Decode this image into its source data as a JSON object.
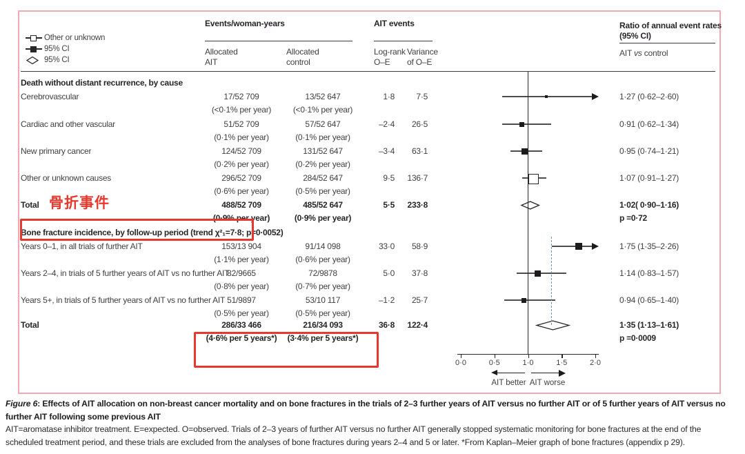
{
  "legend": {
    "items": [
      {
        "marker": "open-square-line",
        "label": "Other or unknown"
      },
      {
        "marker": "filled-square-line",
        "label": "95% CI"
      },
      {
        "marker": "open-diamond",
        "label": "95% CI"
      }
    ]
  },
  "columns": {
    "events_group": "Events/woman-years",
    "allocated_ait": [
      "Allocated",
      "AIT"
    ],
    "allocated_control": [
      "Allocated",
      "control"
    ],
    "ait_events_group": "AIT events",
    "logrank": [
      "Log-rank",
      "O–E"
    ],
    "variance": [
      "Variance",
      "of O–E"
    ],
    "ratio_group": [
      "Ratio of annual event rates",
      "(95% CI)"
    ],
    "ratio_sub": [
      "AIT ",
      "vs",
      " control"
    ]
  },
  "rows": [
    {
      "type": "section",
      "label": "Death without distant recurrence, by cause"
    },
    {
      "type": "data",
      "label": "Cerebrovascular",
      "ait": "17/52 709",
      "ait_note": "(<0·1% per year)",
      "control": "13/52 647",
      "control_note": "(<0·1% per year)",
      "logrank_oe": "1·8",
      "variance": "7·5",
      "ratio": "1·27 (0·62–2·60)",
      "estimate": 1.27,
      "ci_low": 0.62,
      "ci_high": 2.6,
      "ci_high_clipped": true,
      "marker": "filled-square",
      "marker_size": 4
    },
    {
      "type": "data",
      "label": "Cardiac and other vascular",
      "ait": "51/52 709",
      "ait_note": "(0·1% per year)",
      "control": "57/52 647",
      "control_note": "(0·1% per year)",
      "logrank_oe": "–2·4",
      "variance": "26·5",
      "ratio": "0·91 (0·62–1·34)",
      "estimate": 0.91,
      "ci_low": 0.62,
      "ci_high": 1.34,
      "marker": "filled-square",
      "marker_size": 7
    },
    {
      "type": "data",
      "label": "New primary cancer",
      "ait": "124/52 709",
      "ait_note": "(0·2% per year)",
      "control": "131/52 647",
      "control_note": "(0·2% per year)",
      "logrank_oe": "–3·4",
      "variance": "63·1",
      "ratio": "0·95 (0·74–1·21)",
      "estimate": 0.95,
      "ci_low": 0.74,
      "ci_high": 1.21,
      "marker": "filled-square",
      "marker_size": 9
    },
    {
      "type": "data",
      "label": "Other or unknown causes",
      "ait": "296/52 709",
      "ait_note": "(0·6% per year)",
      "control": "284/52 647",
      "control_note": "(0·5% per year)",
      "logrank_oe": "9·5",
      "variance": "136·7",
      "ratio": "1·07 (0·91–1·27)",
      "estimate": 1.07,
      "ci_low": 0.91,
      "ci_high": 1.27,
      "marker": "open-square",
      "marker_size": 13
    },
    {
      "type": "total",
      "label": "Total",
      "ait": "488/52 709",
      "ait_note": "(0·9% per year)",
      "control": "485/52 647",
      "control_note": "(0·9% per year)",
      "logrank_oe": "5·5",
      "variance": "233·8",
      "ratio": "1·02( 0·90–1·16)",
      "p": "p =0·72",
      "estimate": 1.02,
      "ci_low": 0.9,
      "ci_high": 1.16,
      "marker": "diamond"
    },
    {
      "type": "section",
      "label": "Bone fracture incidence, by follow-up period (trend χ²₁=7·8; p=0·0052)"
    },
    {
      "type": "data",
      "label": "Years 0–1, in all trials of further AIT",
      "ait": "153/13 904",
      "ait_note": "(1·1% per year)",
      "control": "91/14 098",
      "control_note": "(0·6% per year)",
      "logrank_oe": "33·0",
      "variance": "58·9",
      "ratio": "1·75 (1·35–2·26)",
      "estimate": 1.75,
      "ci_low": 1.35,
      "ci_high": 2.26,
      "ci_high_clipped": true,
      "marker": "filled-square",
      "marker_size": 10
    },
    {
      "type": "data",
      "label": "Years 2–4, in trials of 5 further years of AIT vs no further AIT",
      "ait": "82/9665",
      "ait_note": "(0·8% per year)",
      "control": "72/9878",
      "control_note": "(0·7% per year)",
      "logrank_oe": "5·0",
      "variance": "37·8",
      "ratio": "1·14 (0·83–1·57)",
      "estimate": 1.14,
      "ci_low": 0.83,
      "ci_high": 1.57,
      "marker": "filled-square",
      "marker_size": 9
    },
    {
      "type": "data",
      "label": "Years 5+, in trials of 5 further years of AIT vs no further AIT",
      "ait": "51/9897",
      "ait_note": "(0·5% per year)",
      "control": "53/10 117",
      "control_note": "(0·5% per year)",
      "logrank_oe": "–1·2",
      "variance": "25·7",
      "ratio": "0·94 (0·65–1·40)",
      "estimate": 0.94,
      "ci_low": 0.65,
      "ci_high": 1.4,
      "marker": "filled-square",
      "marker_size": 7
    },
    {
      "type": "total",
      "label": "Total",
      "ait": "286/33 466",
      "ait_note": "(4·6% per 5 years*)",
      "control": "216/34 093",
      "control_note": "(3·4% per 5 years*)",
      "logrank_oe": "36·8",
      "variance": "122·4",
      "ratio": "1·35 (1·13–1·61)",
      "p": "p =0·0009",
      "estimate": 1.35,
      "ci_low": 1.13,
      "ci_high": 1.61,
      "marker": "diamond"
    }
  ],
  "axis": {
    "tick_labels": [
      "0·0",
      "0·5",
      "1·0",
      "1·5",
      "2·0"
    ],
    "tick_values": [
      0,
      0.5,
      1,
      1.5,
      2
    ],
    "left_label": "AIT better",
    "right_label": "AIT worse",
    "reference": 1.0,
    "dashed_reference": 1.35
  },
  "annotations": {
    "total_note": "骨折事件"
  },
  "caption": {
    "fig_label": "Figure 6",
    "line1_rest": ": Effects of AIT allocation on non-breast cancer mortality and on bone fractures in the trials of 2–3 further years of AIT versus no further AIT or of 5 further years of AIT versus no",
    "line2": "further AIT following some previous AIT",
    "line3": "AIT=aromatase inhibitor treatment. E=expected. O=observed. Trials of 2–3 years of further AIT versus no further AIT generally stopped systematic monitoring for bone fractures at the end of the",
    "line4": "scheduled treatment period, and these trials are excluded from the analyses of bone fractures during years 2–4 and 5 or later. *From Kaplan–Meier graph of bone fractures (appendix p 29)."
  },
  "colors": {
    "annotation_red": "#e8372c",
    "panel_border_pink": "#f3a8b2",
    "dashed_line_blue": "#7191a8",
    "ink": "#272527"
  },
  "chart_data": {
    "type": "scatter",
    "subtype": "forest-plot",
    "title": "Ratio of annual event rates (95% CI), AIT vs control",
    "xlim": [
      0,
      2
    ],
    "x_ticks": [
      0.0,
      0.5,
      1.0,
      1.5,
      2.0
    ],
    "reference_line_x": 1.0,
    "dashed_line_x": 1.35,
    "direction_labels": {
      "left": "AIT better",
      "right": "AIT worse"
    },
    "points": [
      {
        "label": "Cerebrovascular",
        "estimate": 1.27,
        "ci": [
          0.62,
          2.6
        ]
      },
      {
        "label": "Cardiac and other vascular",
        "estimate": 0.91,
        "ci": [
          0.62,
          1.34
        ]
      },
      {
        "label": "New primary cancer",
        "estimate": 0.95,
        "ci": [
          0.74,
          1.21
        ]
      },
      {
        "label": "Other or unknown causes",
        "estimate": 1.07,
        "ci": [
          0.91,
          1.27
        ]
      },
      {
        "label": "Total (death without distant recurrence)",
        "estimate": 1.02,
        "ci": [
          0.9,
          1.16
        ],
        "p": "0·72"
      },
      {
        "label": "Years 0–1, in all trials of further AIT",
        "estimate": 1.75,
        "ci": [
          1.35,
          2.26
        ]
      },
      {
        "label": "Years 2–4, in trials of 5 further years of AIT vs no further AIT",
        "estimate": 1.14,
        "ci": [
          0.83,
          1.57
        ]
      },
      {
        "label": "Years 5+, in trials of 5 further years of AIT vs no further AIT",
        "estimate": 0.94,
        "ci": [
          0.65,
          1.4
        ]
      },
      {
        "label": "Total (bone fracture incidence)",
        "estimate": 1.35,
        "ci": [
          1.13,
          1.61
        ],
        "p": "0·0009"
      }
    ]
  }
}
